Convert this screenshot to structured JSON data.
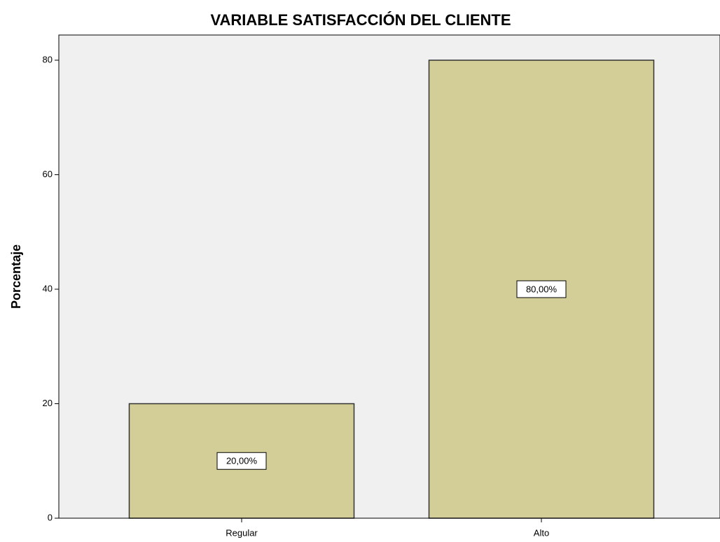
{
  "chart_data": {
    "type": "bar",
    "title": "VARIABLE SATISFACCIÓN DEL CLIENTE",
    "y_label": "Porcentaje",
    "categories": [
      "Regular",
      "Alto"
    ],
    "values": [
      20,
      80
    ],
    "value_labels": [
      "20,00%",
      "80,00%"
    ],
    "color": "#d3ce97",
    "ylim": [
      0,
      84.4
    ],
    "yticks": [
      0,
      20,
      40,
      60,
      80
    ],
    "grid": false
  }
}
